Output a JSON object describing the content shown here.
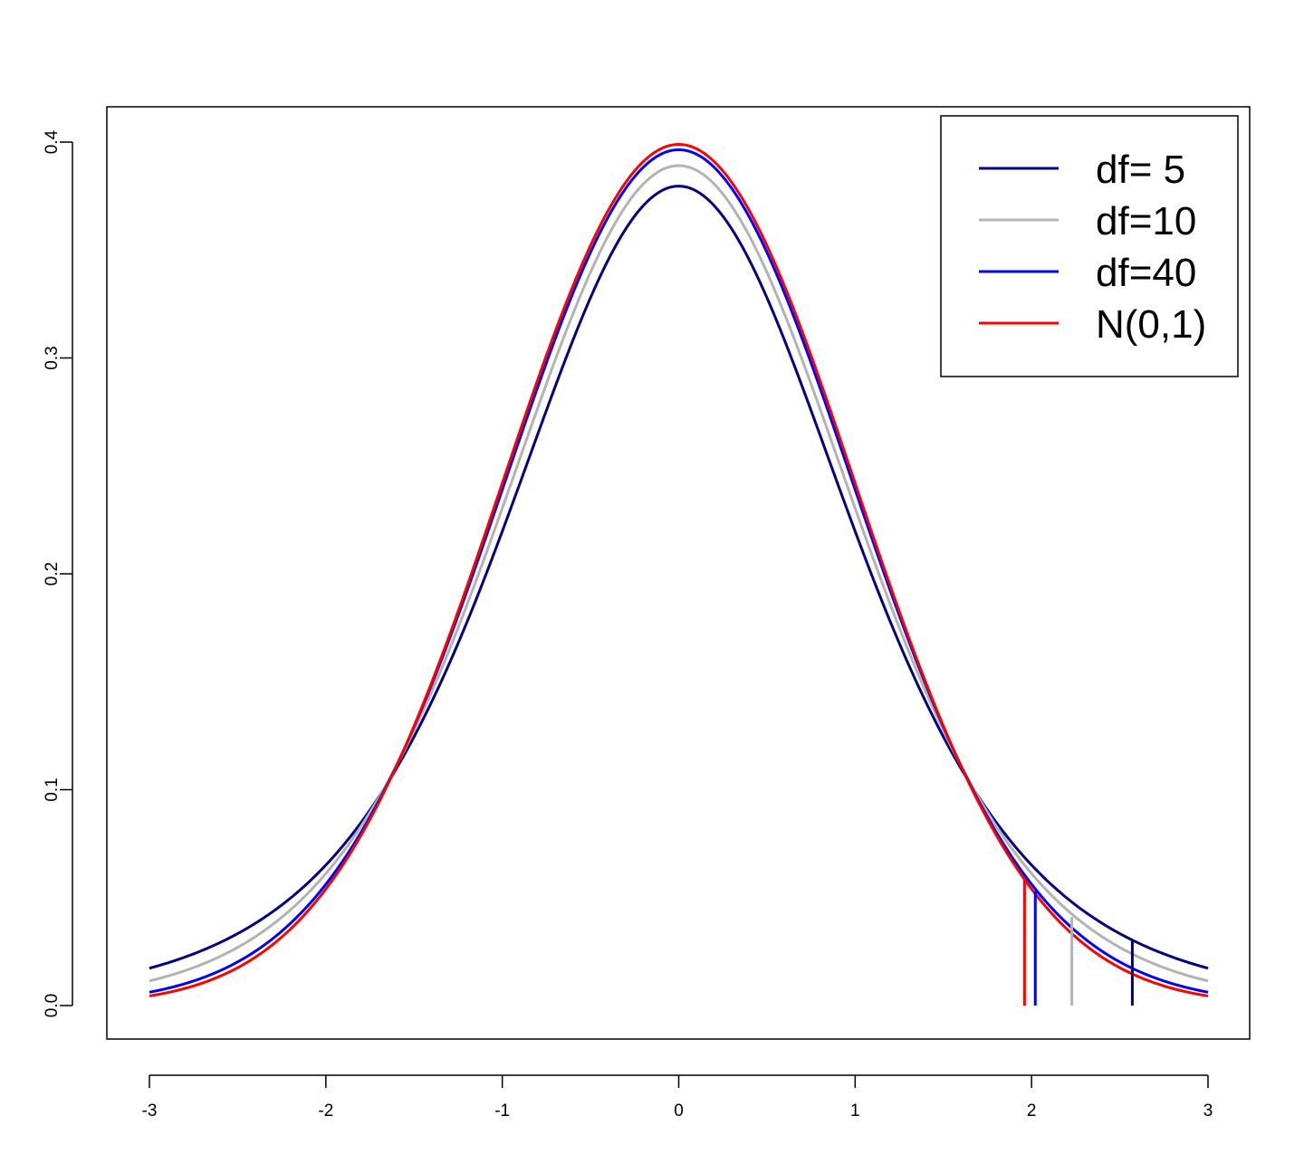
{
  "chart_data": {
    "type": "line",
    "title": "",
    "xlabel": "",
    "ylabel": "",
    "xlim": [
      -3,
      3
    ],
    "ylim": [
      0,
      0.4
    ],
    "x_ticks": [
      "-3",
      "-2",
      "-1",
      "0",
      "1",
      "2",
      "3"
    ],
    "y_ticks": [
      "0.0",
      "0.1",
      "0.2",
      "0.3",
      "0.4"
    ],
    "grid": false,
    "legend_position": "top-right",
    "series": [
      {
        "name": "df= 5",
        "df": 5,
        "color": "#000080",
        "critical_value": 2.571,
        "density_at_critical": 0.03
      },
      {
        "name": "df=10",
        "df": 10,
        "color": "#b3b3b3",
        "critical_value": 2.228,
        "density_at_critical": 0.041
      },
      {
        "name": "df=40",
        "df": 40,
        "color": "#0000ff",
        "critical_value": 2.021,
        "density_at_critical": 0.053
      },
      {
        "name": "N(0,1)",
        "df": null,
        "color": "#ff0000",
        "critical_value": 1.96,
        "density_at_critical": 0.058
      }
    ]
  }
}
